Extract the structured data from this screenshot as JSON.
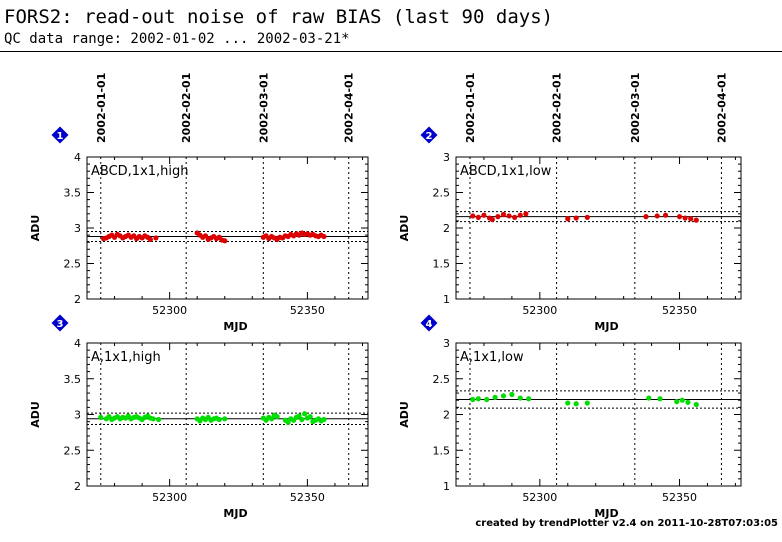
{
  "header": {
    "title": "FORS2: read-out noise of raw BIAS (last 90 days)",
    "subtitle": "QC data range: 2002-01-02 ... 2002-03-21*"
  },
  "footer": {
    "credit": "created by trendPlotter v2.4 on 2011-10-28T07:03:05"
  },
  "colors": {
    "red": "#dd0000",
    "green": "#00dd00",
    "badge": "#0000cc"
  },
  "chart_data": [
    {
      "type": "scatter",
      "panel": "1",
      "label": "ABCD,1x1,high",
      "color": "red",
      "xlabel": "MJD",
      "ylabel": "ADU",
      "xlim": [
        52270,
        52372
      ],
      "ylim": [
        2,
        4
      ],
      "yticks": [
        "2",
        "2.5",
        "3",
        "3.5",
        "4"
      ],
      "xticks": [
        "52300",
        "52350"
      ],
      "date_ticks": [
        {
          "label": "2002-01-01",
          "mjd": 52275
        },
        {
          "label": "2002-02-01",
          "mjd": 52306
        },
        {
          "label": "2002-03-01",
          "mjd": 52334
        },
        {
          "label": "2002-04-01",
          "mjd": 52365
        }
      ],
      "mean": 2.88,
      "band": [
        2.81,
        2.95
      ],
      "points": [
        [
          52276,
          2.85
        ],
        [
          52277,
          2.86
        ],
        [
          52278,
          2.88
        ],
        [
          52279,
          2.9
        ],
        [
          52280,
          2.87
        ],
        [
          52281,
          2.91
        ],
        [
          52282,
          2.89
        ],
        [
          52283,
          2.86
        ],
        [
          52284,
          2.88
        ],
        [
          52285,
          2.9
        ],
        [
          52286,
          2.87
        ],
        [
          52287,
          2.89
        ],
        [
          52288,
          2.85
        ],
        [
          52289,
          2.88
        ],
        [
          52290,
          2.86
        ],
        [
          52291,
          2.89
        ],
        [
          52292,
          2.87
        ],
        [
          52293,
          2.84
        ],
        [
          52295,
          2.86
        ],
        [
          52310,
          2.93
        ],
        [
          52311,
          2.9
        ],
        [
          52312,
          2.87
        ],
        [
          52313,
          2.89
        ],
        [
          52314,
          2.84
        ],
        [
          52315,
          2.86
        ],
        [
          52316,
          2.88
        ],
        [
          52317,
          2.85
        ],
        [
          52318,
          2.87
        ],
        [
          52319,
          2.83
        ],
        [
          52320,
          2.82
        ],
        [
          52334,
          2.87
        ],
        [
          52335,
          2.89
        ],
        [
          52336,
          2.85
        ],
        [
          52337,
          2.88
        ],
        [
          52338,
          2.86
        ],
        [
          52339,
          2.84
        ],
        [
          52340,
          2.87
        ],
        [
          52341,
          2.86
        ],
        [
          52342,
          2.89
        ],
        [
          52343,
          2.88
        ],
        [
          52344,
          2.91
        ],
        [
          52345,
          2.89
        ],
        [
          52346,
          2.92
        ],
        [
          52347,
          2.9
        ],
        [
          52348,
          2.93
        ],
        [
          52349,
          2.91
        ],
        [
          52350,
          2.92
        ],
        [
          52351,
          2.9
        ],
        [
          52352,
          2.91
        ],
        [
          52353,
          2.89
        ],
        [
          52354,
          2.88
        ],
        [
          52355,
          2.9
        ],
        [
          52356,
          2.88
        ]
      ]
    },
    {
      "type": "scatter",
      "panel": "2",
      "label": "ABCD,1x1,low",
      "color": "red",
      "xlabel": "MJD",
      "ylabel": "ADU",
      "xlim": [
        52270,
        52372
      ],
      "ylim": [
        1,
        3
      ],
      "yticks": [
        "1",
        "1.5",
        "2",
        "2.5",
        "3"
      ],
      "xticks": [
        "52300",
        "52350"
      ],
      "date_ticks": [
        {
          "label": "2002-01-01",
          "mjd": 52275
        },
        {
          "label": "2002-02-01",
          "mjd": 52306
        },
        {
          "label": "2002-03-01",
          "mjd": 52334
        },
        {
          "label": "2002-04-01",
          "mjd": 52365
        }
      ],
      "mean": 2.16,
      "band": [
        2.09,
        2.23
      ],
      "points": [
        [
          52276,
          2.17
        ],
        [
          52278,
          2.15
        ],
        [
          52280,
          2.18
        ],
        [
          52282,
          2.14
        ],
        [
          52283,
          2.12
        ],
        [
          52285,
          2.16
        ],
        [
          52287,
          2.19
        ],
        [
          52289,
          2.17
        ],
        [
          52291,
          2.15
        ],
        [
          52293,
          2.18
        ],
        [
          52295,
          2.2
        ],
        [
          52310,
          2.13
        ],
        [
          52313,
          2.14
        ],
        [
          52317,
          2.15
        ],
        [
          52338,
          2.16
        ],
        [
          52342,
          2.17
        ],
        [
          52345,
          2.18
        ],
        [
          52350,
          2.16
        ],
        [
          52352,
          2.14
        ],
        [
          52354,
          2.13
        ],
        [
          52356,
          2.11
        ]
      ]
    },
    {
      "type": "scatter",
      "panel": "3",
      "label": "A,1x1,high",
      "color": "green",
      "xlabel": "MJD",
      "ylabel": "ADU",
      "xlim": [
        52270,
        52372
      ],
      "ylim": [
        2,
        4
      ],
      "yticks": [
        "2",
        "2.5",
        "3",
        "3.5",
        "4"
      ],
      "xticks": [
        "52300",
        "52350"
      ],
      "mean": 2.94,
      "band": [
        2.86,
        3.02
      ],
      "points": [
        [
          52275,
          2.96
        ],
        [
          52277,
          2.94
        ],
        [
          52278,
          2.97
        ],
        [
          52279,
          2.93
        ],
        [
          52280,
          2.95
        ],
        [
          52281,
          2.97
        ],
        [
          52282,
          2.94
        ],
        [
          52283,
          2.96
        ],
        [
          52284,
          2.95
        ],
        [
          52285,
          2.98
        ],
        [
          52286,
          2.94
        ],
        [
          52287,
          2.96
        ],
        [
          52288,
          2.97
        ],
        [
          52289,
          2.95
        ],
        [
          52290,
          2.93
        ],
        [
          52291,
          2.96
        ],
        [
          52292,
          2.98
        ],
        [
          52293,
          2.95
        ],
        [
          52294,
          2.94
        ],
        [
          52296,
          2.93
        ],
        [
          52310,
          2.94
        ],
        [
          52311,
          2.91
        ],
        [
          52312,
          2.95
        ],
        [
          52313,
          2.93
        ],
        [
          52314,
          2.96
        ],
        [
          52315,
          2.92
        ],
        [
          52316,
          2.94
        ],
        [
          52317,
          2.95
        ],
        [
          52318,
          2.93
        ],
        [
          52320,
          2.94
        ],
        [
          52334,
          2.95
        ],
        [
          52335,
          2.92
        ],
        [
          52336,
          2.96
        ],
        [
          52337,
          2.94
        ],
        [
          52338,
          2.99
        ],
        [
          52339,
          2.97
        ],
        [
          52342,
          2.92
        ],
        [
          52343,
          2.89
        ],
        [
          52344,
          2.94
        ],
        [
          52345,
          2.92
        ],
        [
          52346,
          2.96
        ],
        [
          52347,
          2.98
        ],
        [
          52348,
          2.93
        ],
        [
          52349,
          3.01
        ],
        [
          52350,
          2.95
        ],
        [
          52351,
          2.97
        ],
        [
          52352,
          2.9
        ],
        [
          52353,
          2.92
        ],
        [
          52354,
          2.94
        ],
        [
          52355,
          2.91
        ],
        [
          52356,
          2.93
        ]
      ]
    },
    {
      "type": "scatter",
      "panel": "4",
      "label": "A,1x1,low",
      "color": "green",
      "xlabel": "MJD",
      "ylabel": "ADU",
      "xlim": [
        52270,
        52372
      ],
      "ylim": [
        1,
        3
      ],
      "yticks": [
        "1",
        "1.5",
        "2",
        "2.5",
        "3"
      ],
      "xticks": [
        "52300",
        "52350"
      ],
      "mean": 2.21,
      "band": [
        2.09,
        2.33
      ],
      "points": [
        [
          52276,
          2.21
        ],
        [
          52278,
          2.22
        ],
        [
          52281,
          2.21
        ],
        [
          52284,
          2.24
        ],
        [
          52287,
          2.26
        ],
        [
          52290,
          2.28
        ],
        [
          52293,
          2.23
        ],
        [
          52296,
          2.22
        ],
        [
          52310,
          2.16
        ],
        [
          52313,
          2.15
        ],
        [
          52317,
          2.16
        ],
        [
          52339,
          2.23
        ],
        [
          52343,
          2.22
        ],
        [
          52349,
          2.18
        ],
        [
          52351,
          2.2
        ],
        [
          52353,
          2.17
        ],
        [
          52356,
          2.14
        ]
      ]
    }
  ]
}
